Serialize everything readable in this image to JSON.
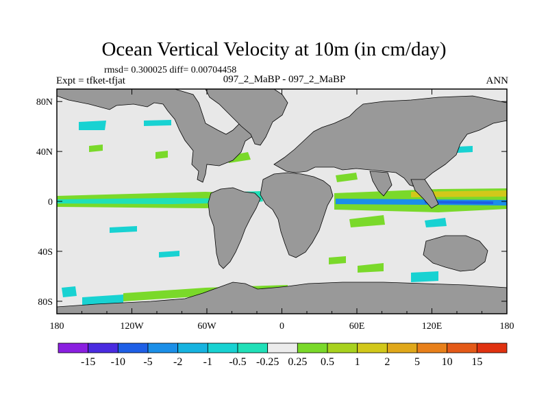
{
  "title": "Ocean Vertical Velocity at 10m (in cm/day)",
  "stats": "rmsd= 0.300025 diff= 0.00704458",
  "expt": "Expt = tfket-tfjat",
  "center_label": "097_2_MaBP - 097_2_MaBP",
  "season": "ANN",
  "map": {
    "lon_range": [
      -180,
      180
    ],
    "lat_range": [
      -90,
      90
    ],
    "lon_ticks": [
      {
        "value": -180,
        "label": "180"
      },
      {
        "value": -120,
        "label": "120W"
      },
      {
        "value": -60,
        "label": "60W"
      },
      {
        "value": 0,
        "label": "0"
      },
      {
        "value": 60,
        "label": "60E"
      },
      {
        "value": 120,
        "label": "120E"
      },
      {
        "value": 180,
        "label": "180"
      }
    ],
    "lat_ticks": [
      {
        "value": 80,
        "label": "80N"
      },
      {
        "value": 40,
        "label": "40N"
      },
      {
        "value": 0,
        "label": "0"
      },
      {
        "value": -40,
        "label": "40S"
      },
      {
        "value": -80,
        "label": "80S"
      }
    ],
    "ocean_background_color": "#e8e8e8",
    "land_color": "#999999"
  },
  "colorbar": {
    "levels": [
      "-15",
      "-10",
      "-5",
      "-2",
      "-1",
      "-0.5",
      "-0.25",
      "0.25",
      "0.5",
      "1",
      "2",
      "5",
      "10",
      "15"
    ],
    "colors": [
      "#8a1fe0",
      "#4a2be0",
      "#1e5fe6",
      "#1b8fe8",
      "#16b3e0",
      "#18d2d2",
      "#20e0b8",
      "#ececec",
      "#7ad92a",
      "#a8d21e",
      "#d2c81a",
      "#e0a81a",
      "#e8801a",
      "#e45a18",
      "#e03210"
    ]
  }
}
